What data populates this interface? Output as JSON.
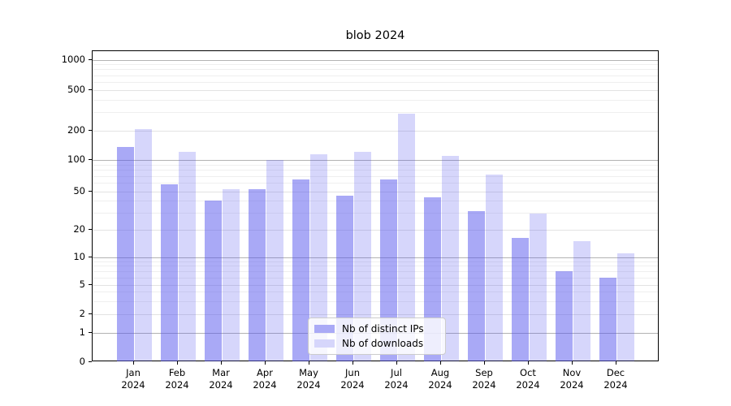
{
  "title": "blob 2024",
  "chart_data": {
    "type": "bar",
    "title": "blob 2024",
    "categories": [
      "Jan",
      "Feb",
      "Mar",
      "Apr",
      "May",
      "Jun",
      "Jul",
      "Aug",
      "Sep",
      "Oct",
      "Nov",
      "Dec"
    ],
    "category_year": "2024",
    "series": [
      {
        "name": "Nb of distinct IPs",
        "fill": "rgba(84,84,238,0.50)",
        "legend_color": "#aaaaf6",
        "values": [
          135,
          58,
          40,
          52,
          65,
          45,
          65,
          43,
          31,
          16,
          7,
          6
        ]
      },
      {
        "name": "Nb of downloads",
        "fill": "rgba(84,84,238,0.24)",
        "legend_color": "#d6d6fb",
        "values": [
          205,
          120,
          52,
          100,
          115,
          120,
          290,
          110,
          72,
          29,
          15,
          11
        ]
      }
    ],
    "yscale": "symlog",
    "yticks": [
      0,
      1,
      2,
      5,
      10,
      20,
      50,
      100,
      200,
      500,
      1000
    ],
    "ylim": [
      0,
      1200
    ],
    "xlabel": "",
    "ylabel": "",
    "grid": "on",
    "legend_position": "lower center"
  },
  "colors": {
    "grid_major": "#b3b3b3",
    "grid_sub": "#e3e3e3",
    "grid_minor": "#efefef",
    "axis": "#000000",
    "background": "#ffffff"
  }
}
